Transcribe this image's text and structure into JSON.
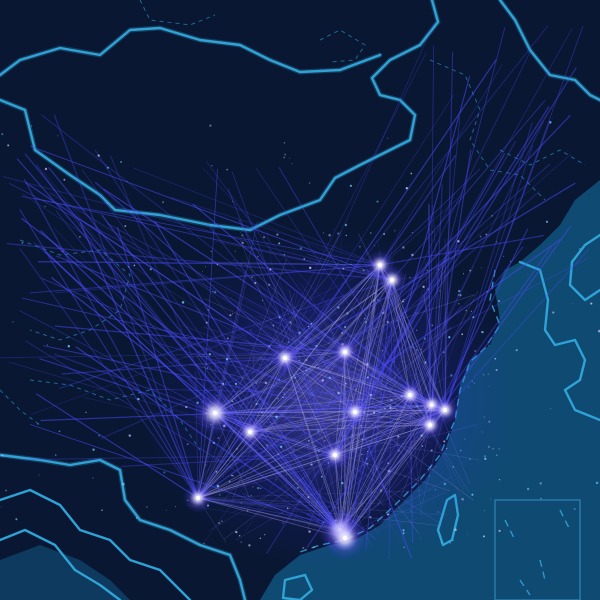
{
  "map": {
    "colors": {
      "background": "#0a1733",
      "sea": "#0f4a72",
      "border": "#2fa3d6",
      "flow": "#4a4cff",
      "flow_bright": "#c9c4ff",
      "hub": "#ffffff"
    },
    "layers": {
      "sea_fill": "sea-area",
      "country_borders": "country-border",
      "province_borders": "province-border-dashed",
      "flow_lines": "migration-flow-lines",
      "hub_glows": "city-hub-glow",
      "inset_box": "south-sea-inset"
    },
    "legend": null,
    "title": ""
  }
}
